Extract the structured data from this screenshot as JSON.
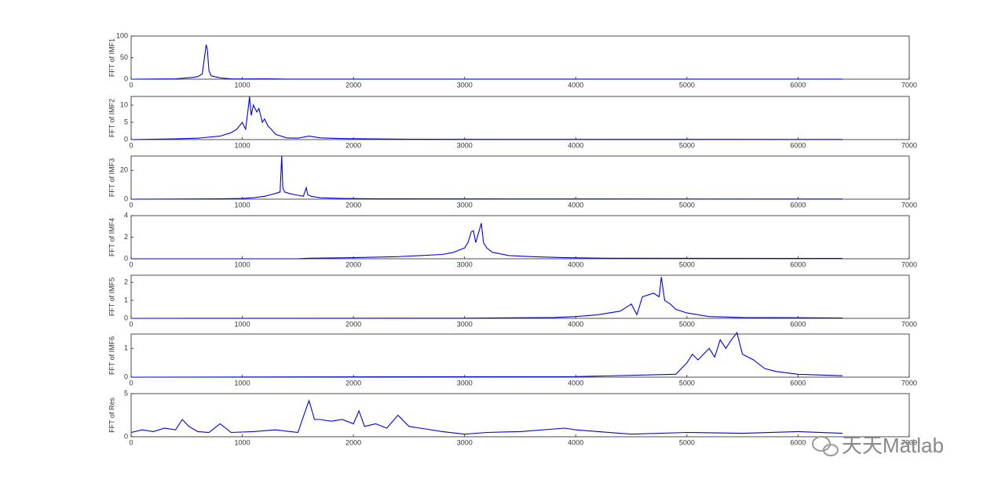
{
  "chart_data": [
    {
      "type": "line",
      "ylabel": "FFT of IMF1",
      "xlim": [
        0,
        7000
      ],
      "xticks": [
        0,
        1000,
        2000,
        3000,
        4000,
        5000,
        6000,
        7000
      ],
      "ylim": [
        0,
        100
      ],
      "yticks": [
        0,
        50,
        100
      ],
      "color": "#0000ee",
      "x": [
        0,
        300,
        400,
        500,
        550,
        600,
        640,
        660,
        675,
        685,
        700,
        720,
        750,
        800,
        850,
        900,
        1000,
        1200,
        1300,
        1400,
        6400
      ],
      "values": [
        0,
        0.5,
        1,
        3,
        4,
        6,
        12,
        50,
        80,
        70,
        20,
        8,
        6,
        3,
        2,
        1,
        0.5,
        1,
        0.5,
        0.2,
        0.1
      ]
    },
    {
      "type": "line",
      "ylabel": "FFT of IMF2",
      "xlim": [
        0,
        7000
      ],
      "xticks": [
        0,
        1000,
        2000,
        3000,
        4000,
        5000,
        6000,
        7000
      ],
      "ylim": [
        0,
        12.5
      ],
      "yticks": [
        0,
        5,
        10
      ],
      "color": "#0000ee",
      "x": [
        0,
        400,
        600,
        800,
        900,
        950,
        1000,
        1030,
        1050,
        1065,
        1080,
        1100,
        1130,
        1150,
        1180,
        1200,
        1230,
        1260,
        1300,
        1400,
        1500,
        1600,
        1700,
        1900,
        2500,
        6400
      ],
      "values": [
        0,
        0.2,
        0.4,
        1,
        2,
        3,
        5,
        3,
        8,
        12.5,
        7,
        10,
        8,
        9,
        5,
        6,
        4,
        3,
        1.5,
        0.5,
        0.4,
        1,
        0.5,
        0.3,
        0.1,
        0.05
      ]
    },
    {
      "type": "line",
      "ylabel": "FFT of IMF3",
      "xlim": [
        0,
        7000
      ],
      "xticks": [
        0,
        1000,
        2000,
        3000,
        4000,
        5000,
        6000,
        7000
      ],
      "ylim": [
        0,
        30
      ],
      "yticks": [
        0,
        20
      ],
      "color": "#0000ee",
      "x": [
        0,
        800,
        1000,
        1100,
        1200,
        1250,
        1300,
        1340,
        1355,
        1365,
        1380,
        1420,
        1480,
        1550,
        1575,
        1590,
        1620,
        1700,
        1900,
        2200,
        6400
      ],
      "values": [
        0,
        0.2,
        0.5,
        1,
        2,
        3,
        4,
        5,
        30,
        8,
        5,
        4,
        3,
        2,
        8,
        3,
        2,
        1,
        0.5,
        0.2,
        0.1
      ]
    },
    {
      "type": "line",
      "ylabel": "FFT of IMF4",
      "xlim": [
        0,
        7000
      ],
      "xticks": [
        0,
        1000,
        2000,
        3000,
        4000,
        5000,
        6000,
        7000
      ],
      "ylim": [
        0,
        4
      ],
      "yticks": [
        0,
        2,
        4
      ],
      "color": "#0000ee",
      "x": [
        0,
        1500,
        1600,
        2000,
        2400,
        2600,
        2800,
        2900,
        2950,
        3000,
        3030,
        3060,
        3080,
        3100,
        3120,
        3150,
        3170,
        3200,
        3250,
        3300,
        3400,
        3600,
        3900,
        4300,
        6400
      ],
      "values": [
        0,
        0,
        0.05,
        0.1,
        0.2,
        0.3,
        0.4,
        0.6,
        0.8,
        1,
        1.5,
        2.5,
        2.6,
        1.5,
        2.2,
        3.3,
        1.5,
        1,
        0.6,
        0.5,
        0.3,
        0.2,
        0.1,
        0.05,
        0.03
      ]
    },
    {
      "type": "line",
      "ylabel": "FFT of IMF5",
      "xlim": [
        0,
        7000
      ],
      "xticks": [
        0,
        1000,
        2000,
        3000,
        4000,
        5000,
        6000,
        7000
      ],
      "ylim": [
        0,
        2.4
      ],
      "yticks": [
        0,
        1,
        2
      ],
      "color": "#0000ee",
      "x": [
        0,
        3000,
        3800,
        4000,
        4200,
        4300,
        4400,
        4450,
        4500,
        4550,
        4600,
        4650,
        4700,
        4750,
        4770,
        4800,
        4850,
        4900,
        5000,
        5200,
        5500,
        6400
      ],
      "values": [
        0,
        0.01,
        0.05,
        0.1,
        0.2,
        0.3,
        0.4,
        0.6,
        0.8,
        0.2,
        1.2,
        1.3,
        1.4,
        1.2,
        2.3,
        1,
        0.8,
        0.5,
        0.3,
        0.1,
        0.05,
        0.02
      ]
    },
    {
      "type": "line",
      "ylabel": "FFT of IMF6",
      "xlim": [
        0,
        7000
      ],
      "xticks": [
        0,
        1000,
        2000,
        3000,
        4000,
        5000,
        6000,
        7000
      ],
      "ylim": [
        0,
        1.5
      ],
      "yticks": [
        0,
        1
      ],
      "color": "#0000ee",
      "x": [
        0,
        4000,
        4900,
        5000,
        5050,
        5100,
        5200,
        5250,
        5300,
        5350,
        5400,
        5450,
        5500,
        5600,
        5700,
        5800,
        6000,
        6400
      ],
      "values": [
        0,
        0.02,
        0.1,
        0.5,
        0.8,
        0.6,
        1.0,
        0.7,
        1.3,
        1.0,
        1.3,
        1.55,
        0.8,
        0.6,
        0.3,
        0.2,
        0.1,
        0.05
      ]
    },
    {
      "type": "line",
      "ylabel": "FFT of Res",
      "xlim": [
        0,
        7000
      ],
      "xticks": [
        0,
        1000,
        2000,
        3000,
        4000,
        5000,
        6000,
        7000
      ],
      "ylim": [
        0,
        5
      ],
      "yticks": [
        0,
        5
      ],
      "color": "#0000ee",
      "x": [
        0,
        100,
        200,
        300,
        400,
        460,
        520,
        600,
        700,
        800,
        900,
        1100,
        1300,
        1500,
        1600,
        1650,
        1700,
        1800,
        1900,
        2000,
        2050,
        2100,
        2200,
        2300,
        2400,
        2500,
        2600,
        2800,
        3000,
        3200,
        3500,
        3900,
        4000,
        4200,
        4500,
        5000,
        5500,
        6000,
        6400
      ],
      "values": [
        0.5,
        0.8,
        0.6,
        1,
        0.8,
        2,
        1.2,
        0.6,
        0.5,
        1.5,
        0.5,
        0.6,
        0.8,
        0.5,
        4.2,
        2,
        2,
        1.8,
        2,
        1.5,
        3,
        1.2,
        1.5,
        1,
        2.5,
        1.2,
        1,
        0.6,
        0.3,
        0.5,
        0.6,
        1,
        0.8,
        0.6,
        0.3,
        0.5,
        0.4,
        0.6,
        0.4
      ]
    }
  ],
  "watermark": "天天Matlab"
}
